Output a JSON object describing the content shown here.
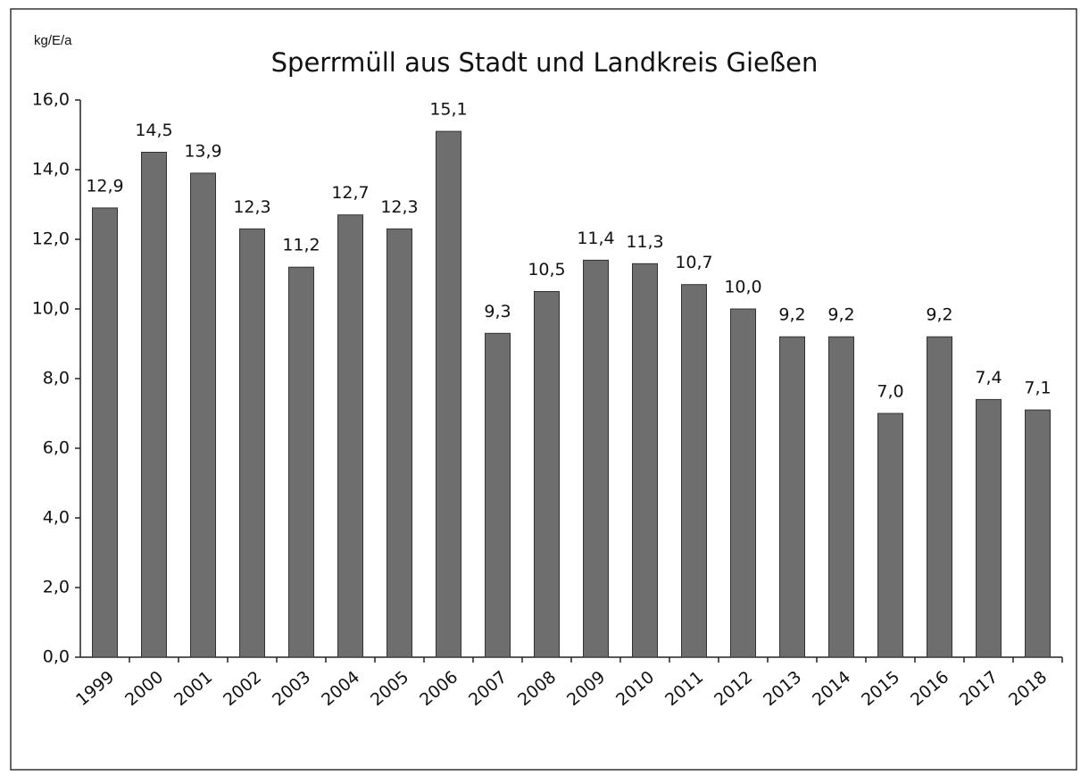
{
  "chart_data": {
    "type": "bar",
    "title": "Sperrmüll aus Stadt und Landkreis Gießen",
    "y_label": "kg/E/a",
    "categories": [
      "1999",
      "2000",
      "2001",
      "2002",
      "2003",
      "2004",
      "2005",
      "2006",
      "2007",
      "2008",
      "2009",
      "2010",
      "2011",
      "2012",
      "2013",
      "2014",
      "2015",
      "2016",
      "2017",
      "2018"
    ],
    "values": [
      12.9,
      14.5,
      13.9,
      12.3,
      11.2,
      12.7,
      12.3,
      15.1,
      9.3,
      10.5,
      11.4,
      11.3,
      10.7,
      10.0,
      9.2,
      9.2,
      7.0,
      9.2,
      7.4,
      7.1
    ],
    "value_labels": [
      "12,9",
      "14,5",
      "13,9",
      "12,3",
      "11,2",
      "12,7",
      "12,3",
      "15,1",
      "9,3",
      "10,5",
      "11,4",
      "11,3",
      "10,7",
      "10,0",
      "9,2",
      "9,2",
      "7,0",
      "9,2",
      "7,4",
      "7,1"
    ],
    "color": "#6e6e6e",
    "ylim": [
      0,
      16
    ],
    "yticks": [
      {
        "value": 0,
        "label": "0,0"
      },
      {
        "value": 2,
        "label": "2,0"
      },
      {
        "value": 4,
        "label": "4,0"
      },
      {
        "value": 6,
        "label": "6,0"
      },
      {
        "value": 8,
        "label": "8,0"
      },
      {
        "value": 10,
        "label": "10,0"
      },
      {
        "value": 12,
        "label": "12,0"
      },
      {
        "value": 14,
        "label": "14,0"
      },
      {
        "value": 16,
        "label": "16,0"
      }
    ],
    "grid": false
  }
}
